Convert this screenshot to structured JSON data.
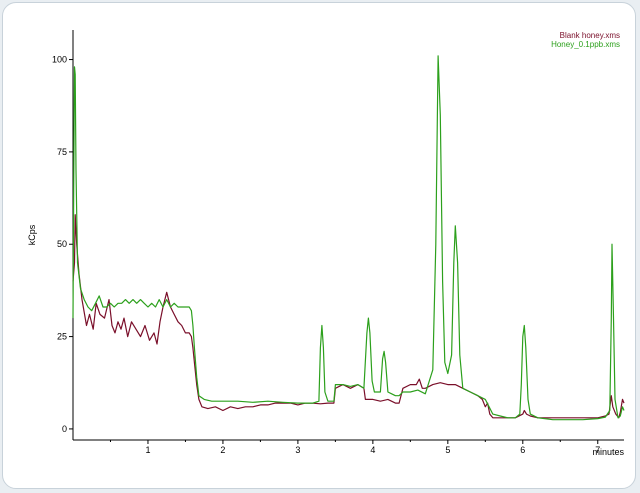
{
  "chart_data": {
    "type": "line",
    "title": "",
    "xlabel": "minutes",
    "ylabel": "kCps",
    "xlim": [
      0,
      7.35
    ],
    "ylim": [
      -3,
      108
    ],
    "xticks": [
      1,
      2,
      3,
      4,
      5,
      6,
      7
    ],
    "yticks": [
      0,
      25,
      50,
      75,
      100
    ],
    "legend_position": "top-right",
    "grid": false,
    "series": [
      {
        "name": "Blank honey.xms",
        "color": "#7a0f2a",
        "points": [
          [
            0,
            40
          ],
          [
            0.02,
            45
          ],
          [
            0.03,
            58
          ],
          [
            0.05,
            50
          ],
          [
            0.08,
            42
          ],
          [
            0.12,
            35
          ],
          [
            0.18,
            28
          ],
          [
            0.22,
            31
          ],
          [
            0.27,
            27
          ],
          [
            0.31,
            34
          ],
          [
            0.36,
            31
          ],
          [
            0.42,
            30
          ],
          [
            0.48,
            35
          ],
          [
            0.52,
            28
          ],
          [
            0.56,
            26
          ],
          [
            0.6,
            29
          ],
          [
            0.64,
            27
          ],
          [
            0.68,
            30
          ],
          [
            0.73,
            25
          ],
          [
            0.78,
            29
          ],
          [
            0.84,
            27
          ],
          [
            0.9,
            25
          ],
          [
            0.96,
            28
          ],
          [
            1.02,
            24
          ],
          [
            1.08,
            26
          ],
          [
            1.12,
            23
          ],
          [
            1.16,
            29
          ],
          [
            1.2,
            33
          ],
          [
            1.25,
            37
          ],
          [
            1.3,
            33
          ],
          [
            1.35,
            31
          ],
          [
            1.4,
            29
          ],
          [
            1.45,
            28
          ],
          [
            1.5,
            26
          ],
          [
            1.55,
            26
          ],
          [
            1.58,
            25
          ],
          [
            1.6,
            22
          ],
          [
            1.62,
            18
          ],
          [
            1.65,
            12
          ],
          [
            1.68,
            8
          ],
          [
            1.72,
            6
          ],
          [
            1.8,
            5.5
          ],
          [
            1.9,
            6
          ],
          [
            2.0,
            5
          ],
          [
            2.1,
            6
          ],
          [
            2.2,
            5.5
          ],
          [
            2.3,
            6
          ],
          [
            2.4,
            6
          ],
          [
            2.5,
            6.5
          ],
          [
            2.6,
            6.5
          ],
          [
            2.7,
            7
          ],
          [
            2.8,
            7
          ],
          [
            2.9,
            7
          ],
          [
            3.0,
            6.5
          ],
          [
            3.1,
            7
          ],
          [
            3.2,
            7
          ],
          [
            3.3,
            6.8
          ],
          [
            3.4,
            7
          ],
          [
            3.48,
            7
          ],
          [
            3.5,
            11
          ],
          [
            3.6,
            12
          ],
          [
            3.7,
            11
          ],
          [
            3.8,
            12
          ],
          [
            3.88,
            11
          ],
          [
            3.9,
            8
          ],
          [
            4.0,
            8
          ],
          [
            4.1,
            7.5
          ],
          [
            4.2,
            8
          ],
          [
            4.3,
            7
          ],
          [
            4.35,
            7
          ],
          [
            4.4,
            11
          ],
          [
            4.5,
            12
          ],
          [
            4.58,
            12
          ],
          [
            4.62,
            13.5
          ],
          [
            4.66,
            11
          ],
          [
            4.7,
            11
          ],
          [
            4.8,
            12
          ],
          [
            4.9,
            12.5
          ],
          [
            5.0,
            12
          ],
          [
            5.1,
            12
          ],
          [
            5.2,
            11
          ],
          [
            5.3,
            10
          ],
          [
            5.4,
            9
          ],
          [
            5.46,
            8
          ],
          [
            5.5,
            6
          ],
          [
            5.53,
            7
          ],
          [
            5.56,
            4
          ],
          [
            5.6,
            3
          ],
          [
            5.7,
            3
          ],
          [
            5.8,
            3
          ],
          [
            5.9,
            3
          ],
          [
            6.0,
            4
          ],
          [
            6.02,
            5
          ],
          [
            6.05,
            4
          ],
          [
            6.1,
            3.5
          ],
          [
            6.2,
            3
          ],
          [
            6.4,
            3
          ],
          [
            6.6,
            3
          ],
          [
            6.8,
            3
          ],
          [
            7.0,
            3
          ],
          [
            7.1,
            3.5
          ],
          [
            7.15,
            4
          ],
          [
            7.18,
            9
          ],
          [
            7.2,
            6
          ],
          [
            7.24,
            4
          ],
          [
            7.28,
            3
          ],
          [
            7.3,
            4.5
          ],
          [
            7.33,
            8
          ],
          [
            7.35,
            7
          ]
        ]
      },
      {
        "name": "Honey_0.1ppb.xms",
        "color": "#2ca01c",
        "points": [
          [
            0,
            30
          ],
          [
            0.01,
            65
          ],
          [
            0.02,
            98
          ],
          [
            0.03,
            96
          ],
          [
            0.04,
            70
          ],
          [
            0.06,
            45
          ],
          [
            0.1,
            38
          ],
          [
            0.15,
            35
          ],
          [
            0.2,
            33
          ],
          [
            0.25,
            32
          ],
          [
            0.3,
            34
          ],
          [
            0.35,
            36
          ],
          [
            0.4,
            33
          ],
          [
            0.45,
            33
          ],
          [
            0.5,
            34
          ],
          [
            0.55,
            33
          ],
          [
            0.6,
            34
          ],
          [
            0.65,
            34
          ],
          [
            0.7,
            35
          ],
          [
            0.75,
            34
          ],
          [
            0.8,
            35
          ],
          [
            0.85,
            34
          ],
          [
            0.9,
            35
          ],
          [
            0.95,
            34
          ],
          [
            1.0,
            33
          ],
          [
            1.05,
            34
          ],
          [
            1.1,
            33
          ],
          [
            1.15,
            35
          ],
          [
            1.2,
            33
          ],
          [
            1.25,
            35
          ],
          [
            1.3,
            33
          ],
          [
            1.35,
            34
          ],
          [
            1.4,
            33
          ],
          [
            1.45,
            33
          ],
          [
            1.5,
            33
          ],
          [
            1.55,
            33
          ],
          [
            1.58,
            32
          ],
          [
            1.6,
            28
          ],
          [
            1.62,
            22
          ],
          [
            1.65,
            14
          ],
          [
            1.68,
            9
          ],
          [
            1.75,
            8
          ],
          [
            1.85,
            7.5
          ],
          [
            2.0,
            7.5
          ],
          [
            2.2,
            7.5
          ],
          [
            2.4,
            7.2
          ],
          [
            2.6,
            7.5
          ],
          [
            2.8,
            7.2
          ],
          [
            3.0,
            7
          ],
          [
            3.2,
            7
          ],
          [
            3.28,
            7.5
          ],
          [
            3.3,
            22
          ],
          [
            3.32,
            28
          ],
          [
            3.34,
            22
          ],
          [
            3.36,
            10
          ],
          [
            3.4,
            7.5
          ],
          [
            3.48,
            7.5
          ],
          [
            3.5,
            12
          ],
          [
            3.6,
            12
          ],
          [
            3.7,
            11.5
          ],
          [
            3.8,
            12
          ],
          [
            3.88,
            11
          ],
          [
            3.92,
            26
          ],
          [
            3.94,
            30
          ],
          [
            3.96,
            26
          ],
          [
            3.99,
            13
          ],
          [
            4.02,
            10
          ],
          [
            4.1,
            10
          ],
          [
            4.13,
            19
          ],
          [
            4.15,
            21
          ],
          [
            4.17,
            18
          ],
          [
            4.2,
            10
          ],
          [
            4.25,
            9.5
          ],
          [
            4.3,
            9
          ],
          [
            4.35,
            9
          ],
          [
            4.4,
            10
          ],
          [
            4.5,
            10
          ],
          [
            4.6,
            10.5
          ],
          [
            4.7,
            9.5
          ],
          [
            4.8,
            16
          ],
          [
            4.84,
            50
          ],
          [
            4.87,
            101
          ],
          [
            4.9,
            85
          ],
          [
            4.93,
            40
          ],
          [
            4.96,
            18
          ],
          [
            5.0,
            15
          ],
          [
            5.05,
            20
          ],
          [
            5.08,
            45
          ],
          [
            5.1,
            55
          ],
          [
            5.13,
            45
          ],
          [
            5.16,
            20
          ],
          [
            5.2,
            11
          ],
          [
            5.3,
            10
          ],
          [
            5.4,
            9
          ],
          [
            5.5,
            8
          ],
          [
            5.55,
            6
          ],
          [
            5.6,
            4
          ],
          [
            5.7,
            3.5
          ],
          [
            5.8,
            3
          ],
          [
            5.9,
            3
          ],
          [
            5.96,
            4
          ],
          [
            5.98,
            12
          ],
          [
            6.0,
            25
          ],
          [
            6.02,
            28
          ],
          [
            6.04,
            22
          ],
          [
            6.07,
            8
          ],
          [
            6.1,
            4
          ],
          [
            6.2,
            3
          ],
          [
            6.4,
            2.5
          ],
          [
            6.6,
            2.5
          ],
          [
            6.8,
            2.5
          ],
          [
            7.0,
            2.8
          ],
          [
            7.1,
            3.2
          ],
          [
            7.16,
            5
          ],
          [
            7.18,
            30
          ],
          [
            7.19,
            50
          ],
          [
            7.21,
            30
          ],
          [
            7.23,
            8
          ],
          [
            7.27,
            3
          ],
          [
            7.3,
            3.5
          ],
          [
            7.33,
            6
          ],
          [
            7.35,
            5
          ]
        ]
      }
    ]
  }
}
